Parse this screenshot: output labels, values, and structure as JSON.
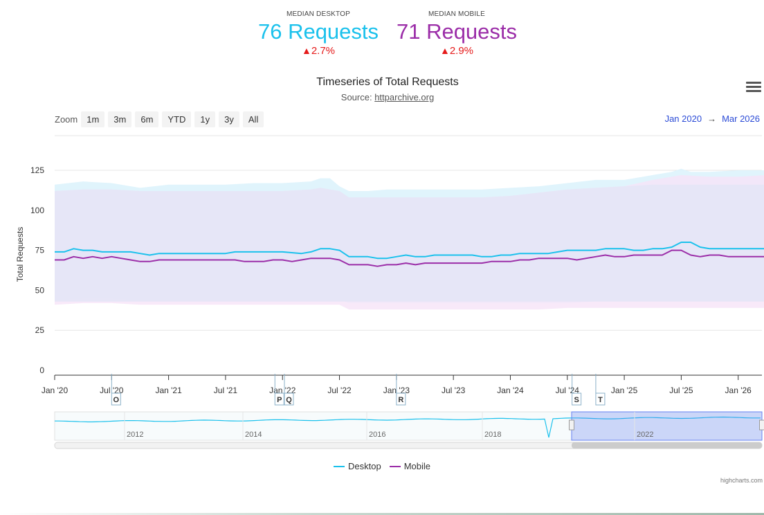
{
  "kpis": {
    "desktop": {
      "label": "MEDIAN DESKTOP",
      "value": "76 Requests",
      "change": "2.7%"
    },
    "mobile": {
      "label": "MEDIAN MOBILE",
      "value": "71 Requests",
      "change": "2.9%"
    },
    "up_symbol": "▲"
  },
  "header": {
    "title": "Timeseries of Total Requests",
    "source_prefix": "Source: ",
    "source_link": "httparchive.org"
  },
  "zoom": {
    "label": "Zoom",
    "buttons": [
      "1m",
      "3m",
      "6m",
      "YTD",
      "1y",
      "3y",
      "All"
    ]
  },
  "range": {
    "from": "Jan 2020",
    "arrow": "→",
    "to": "Mar 2026"
  },
  "legend": {
    "desktop": "Desktop",
    "mobile": "Mobile"
  },
  "credits": "highcharts.com",
  "colors": {
    "desktop": "#1ac1ec",
    "mobile": "#9b2da8",
    "desktop_band": "#ddf3fc",
    "mobile_band": "#f6e3f7",
    "overlap_band": "#e4e5f6",
    "increase": "#e51a1a"
  },
  "chart_data": {
    "type": "line",
    "title": "Timeseries of Total Requests",
    "ylabel": "Total Requests",
    "ylim": [
      0,
      125
    ],
    "yticks": [
      0,
      25,
      50,
      75,
      100,
      125
    ],
    "xlim": [
      "2020-01",
      "2026-03"
    ],
    "xticks": [
      "Jan '20",
      "Jul '20",
      "Jan '21",
      "Jul '21",
      "Jan '22",
      "Jul '22",
      "Jan '23",
      "Jul '23",
      "Jan '24",
      "Jul '24",
      "Jan '25",
      "Jul '25",
      "Jan '26"
    ],
    "series": [
      {
        "name": "Desktop",
        "values": [
          [
            0,
            74
          ],
          [
            1,
            74
          ],
          [
            2,
            76
          ],
          [
            3,
            75
          ],
          [
            4,
            75
          ],
          [
            5,
            74
          ],
          [
            6,
            74
          ],
          [
            7,
            74
          ],
          [
            8,
            74
          ],
          [
            9,
            73
          ],
          [
            10,
            72
          ],
          [
            11,
            73
          ],
          [
            12,
            73
          ],
          [
            14,
            73
          ],
          [
            16,
            73
          ],
          [
            18,
            73
          ],
          [
            19,
            74
          ],
          [
            21,
            74
          ],
          [
            23,
            74
          ],
          [
            24,
            74
          ],
          [
            26,
            73
          ],
          [
            27,
            74
          ],
          [
            28,
            76
          ],
          [
            29,
            76
          ],
          [
            30,
            75
          ],
          [
            31,
            71
          ],
          [
            32,
            71
          ],
          [
            33,
            71
          ],
          [
            34,
            70
          ],
          [
            35,
            70
          ],
          [
            36,
            71
          ],
          [
            37,
            72
          ],
          [
            38,
            71
          ],
          [
            39,
            71
          ],
          [
            40,
            72
          ],
          [
            42,
            72
          ],
          [
            44,
            72
          ],
          [
            45,
            71
          ],
          [
            46,
            71
          ],
          [
            47,
            72
          ],
          [
            48,
            72
          ],
          [
            49,
            73
          ],
          [
            51,
            73
          ],
          [
            52,
            73
          ],
          [
            53,
            74
          ],
          [
            54,
            75
          ],
          [
            55,
            75
          ],
          [
            57,
            75
          ],
          [
            58,
            76
          ],
          [
            59,
            76
          ],
          [
            60,
            76
          ],
          [
            61,
            75
          ],
          [
            62,
            75
          ],
          [
            63,
            76
          ],
          [
            64,
            76
          ],
          [
            65,
            77
          ],
          [
            66,
            80
          ],
          [
            67,
            80
          ],
          [
            68,
            77
          ],
          [
            69,
            76
          ],
          [
            70,
            76
          ],
          [
            72,
            76
          ],
          [
            74,
            76
          ],
          [
            75,
            76
          ]
        ],
        "band": [
          [
            0,
            116,
            44
          ],
          [
            3,
            118,
            45
          ],
          [
            6,
            117,
            45
          ],
          [
            9,
            114,
            44
          ],
          [
            12,
            116,
            44
          ],
          [
            15,
            116,
            44
          ],
          [
            18,
            116,
            44
          ],
          [
            21,
            117,
            44
          ],
          [
            24,
            117,
            44
          ],
          [
            27,
            118,
            44
          ],
          [
            28,
            120,
            44
          ],
          [
            29,
            120,
            44
          ],
          [
            30,
            115,
            44
          ],
          [
            31,
            112,
            42
          ],
          [
            33,
            112,
            42
          ],
          [
            35,
            113,
            42
          ],
          [
            40,
            113,
            42
          ],
          [
            45,
            113,
            42
          ],
          [
            48,
            114,
            42
          ],
          [
            51,
            115,
            42
          ],
          [
            54,
            117,
            42
          ],
          [
            57,
            119,
            43
          ],
          [
            60,
            119,
            43
          ],
          [
            63,
            122,
            43
          ],
          [
            65,
            124,
            43
          ],
          [
            66,
            126,
            43
          ],
          [
            67,
            124,
            43
          ],
          [
            69,
            124,
            43
          ],
          [
            72,
            125,
            43
          ],
          [
            75,
            125,
            43
          ]
        ]
      },
      {
        "name": "Mobile",
        "values": [
          [
            0,
            69
          ],
          [
            1,
            69
          ],
          [
            2,
            71
          ],
          [
            3,
            70
          ],
          [
            4,
            71
          ],
          [
            5,
            70
          ],
          [
            6,
            71
          ],
          [
            7,
            70
          ],
          [
            8,
            69
          ],
          [
            9,
            68
          ],
          [
            10,
            68
          ],
          [
            11,
            69
          ],
          [
            14,
            69
          ],
          [
            17,
            69
          ],
          [
            19,
            69
          ],
          [
            20,
            68
          ],
          [
            22,
            68
          ],
          [
            23,
            69
          ],
          [
            24,
            69
          ],
          [
            25,
            68
          ],
          [
            26,
            69
          ],
          [
            27,
            70
          ],
          [
            28,
            70
          ],
          [
            29,
            70
          ],
          [
            30,
            69
          ],
          [
            31,
            66
          ],
          [
            33,
            66
          ],
          [
            34,
            65
          ],
          [
            35,
            66
          ],
          [
            36,
            66
          ],
          [
            37,
            67
          ],
          [
            38,
            66
          ],
          [
            39,
            67
          ],
          [
            42,
            67
          ],
          [
            44,
            67
          ],
          [
            45,
            67
          ],
          [
            46,
            68
          ],
          [
            48,
            68
          ],
          [
            49,
            69
          ],
          [
            50,
            69
          ],
          [
            51,
            70
          ],
          [
            53,
            70
          ],
          [
            54,
            70
          ],
          [
            55,
            69
          ],
          [
            57,
            71
          ],
          [
            58,
            72
          ],
          [
            59,
            71
          ],
          [
            60,
            71
          ],
          [
            61,
            72
          ],
          [
            63,
            72
          ],
          [
            64,
            72
          ],
          [
            65,
            75
          ],
          [
            66,
            75
          ],
          [
            67,
            72
          ],
          [
            68,
            71
          ],
          [
            69,
            72
          ],
          [
            70,
            72
          ],
          [
            71,
            71
          ],
          [
            73,
            71
          ],
          [
            75,
            71
          ]
        ],
        "band": [
          [
            0,
            112,
            41
          ],
          [
            3,
            113,
            42
          ],
          [
            6,
            113,
            42
          ],
          [
            9,
            112,
            41
          ],
          [
            12,
            112,
            41
          ],
          [
            15,
            112,
            41
          ],
          [
            18,
            112,
            41
          ],
          [
            21,
            112,
            41
          ],
          [
            24,
            112,
            41
          ],
          [
            27,
            113,
            41
          ],
          [
            28,
            114,
            41
          ],
          [
            30,
            112,
            41
          ],
          [
            31,
            108,
            38
          ],
          [
            33,
            108,
            38
          ],
          [
            36,
            108,
            38
          ],
          [
            40,
            108,
            38
          ],
          [
            45,
            108,
            38
          ],
          [
            48,
            109,
            38
          ],
          [
            51,
            111,
            38
          ],
          [
            54,
            113,
            39
          ],
          [
            57,
            114,
            39
          ],
          [
            60,
            115,
            39
          ],
          [
            63,
            119,
            39
          ],
          [
            66,
            122,
            39
          ],
          [
            69,
            121,
            39
          ],
          [
            72,
            121,
            39
          ],
          [
            75,
            122,
            39
          ]
        ]
      }
    ],
    "flags": [
      {
        "label": "O",
        "month": 6
      },
      {
        "label": "P",
        "month": 23.2
      },
      {
        "label": "Q",
        "month": 24.2
      },
      {
        "label": "R",
        "month": 36
      },
      {
        "label": "S",
        "month": 54.5
      },
      {
        "label": "T",
        "month": 57
      }
    ],
    "navigator": {
      "labels": [
        "2012",
        "2014",
        "2016",
        "2018",
        "2022"
      ]
    }
  }
}
